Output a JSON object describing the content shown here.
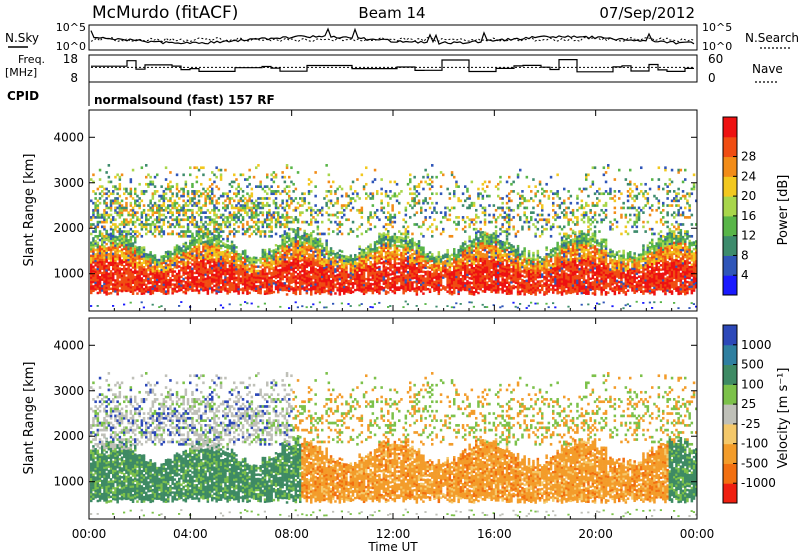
{
  "header": {
    "station": "McMurdo (fitACF)",
    "beam": "Beam 14",
    "date": "07/Sep/2012"
  },
  "sky_panel": {
    "left_label": "N.Sky",
    "right_label": "N.Search",
    "y_ticks_left": [
      "10^5",
      "10^0"
    ],
    "y_ticks_right": [
      "10^5",
      "10^0"
    ]
  },
  "freq_panel": {
    "left_label_line1": "Freq.",
    "left_label_line2": "[MHz]",
    "y_ticks_left": [
      "18",
      "8"
    ],
    "right_label": "Nave",
    "y_ticks_right": [
      "60",
      "0"
    ]
  },
  "cpid": {
    "label": "CPID",
    "text": "normalsound (fast) 157 RF"
  },
  "x_axis": {
    "ticks": [
      "00:00",
      "04:00",
      "08:00",
      "12:00",
      "16:00",
      "20:00",
      "00:00"
    ],
    "label": "Time UT"
  },
  "power_panel": {
    "ylabel": "Slant Range [km]",
    "y_ticks": [
      "1000",
      "2000",
      "3000",
      "4000"
    ],
    "colorbar_label": "Power [dB]",
    "colorbar_ticks": [
      "4",
      "8",
      "12",
      "16",
      "20",
      "24",
      "28"
    ],
    "colors": [
      "#1a1aff",
      "#2f55b8",
      "#3d8b6c",
      "#58b548",
      "#a8d64b",
      "#f2c81f",
      "#f28c18",
      "#f04d12",
      "#ee1111"
    ]
  },
  "velocity_panel": {
    "ylabel": "Slant Range [km]",
    "y_ticks": [
      "1000",
      "2000",
      "3000",
      "4000"
    ],
    "colorbar_label": "Velocity [m s⁻¹]",
    "colorbar_ticks": [
      "1000",
      "500",
      "100",
      "25",
      "-25",
      "-100",
      "-500",
      "-1000"
    ],
    "colors": [
      "#2c48b8",
      "#2f7fa0",
      "#3e8a64",
      "#7cc14a",
      "#bfc0b8",
      "#f4c86a",
      "#f39c2a",
      "#f26f10",
      "#ef1f10"
    ]
  },
  "chart_data": [
    {
      "type": "line",
      "title": "McMurdo (fitACF)",
      "panel": "N.Sky / N.Search",
      "xlim": [
        "00:00",
        "24:00"
      ],
      "scale": "log",
      "ylim": [
        1,
        100000
      ]
    },
    {
      "type": "line",
      "panel": "Freq. / Nave",
      "xlim": [
        "00:00",
        "24:00"
      ],
      "ylim_freq_MHz": [
        8,
        18
      ],
      "ylim_nave": [
        0,
        60
      ]
    },
    {
      "type": "heatmap",
      "panel": "Power",
      "xlabel": "Time UT",
      "ylabel": "Slant Range [km]",
      "xlim": [
        "00:00",
        "24:00"
      ],
      "ylim": [
        180,
        4600
      ],
      "colorbar_label": "Power [dB]",
      "colorbar_ticks": [
        4,
        8,
        12,
        16,
        20,
        24,
        28
      ]
    },
    {
      "type": "heatmap",
      "panel": "Velocity",
      "xlabel": "Time UT",
      "ylabel": "Slant Range [km]",
      "xlim": [
        "00:00",
        "24:00"
      ],
      "ylim": [
        180,
        4600
      ],
      "colorbar_label": "Velocity [m s⁻¹]",
      "colorbar_ticks": [
        1000,
        500,
        100,
        25,
        -25,
        -100,
        -500,
        -1000
      ]
    }
  ]
}
